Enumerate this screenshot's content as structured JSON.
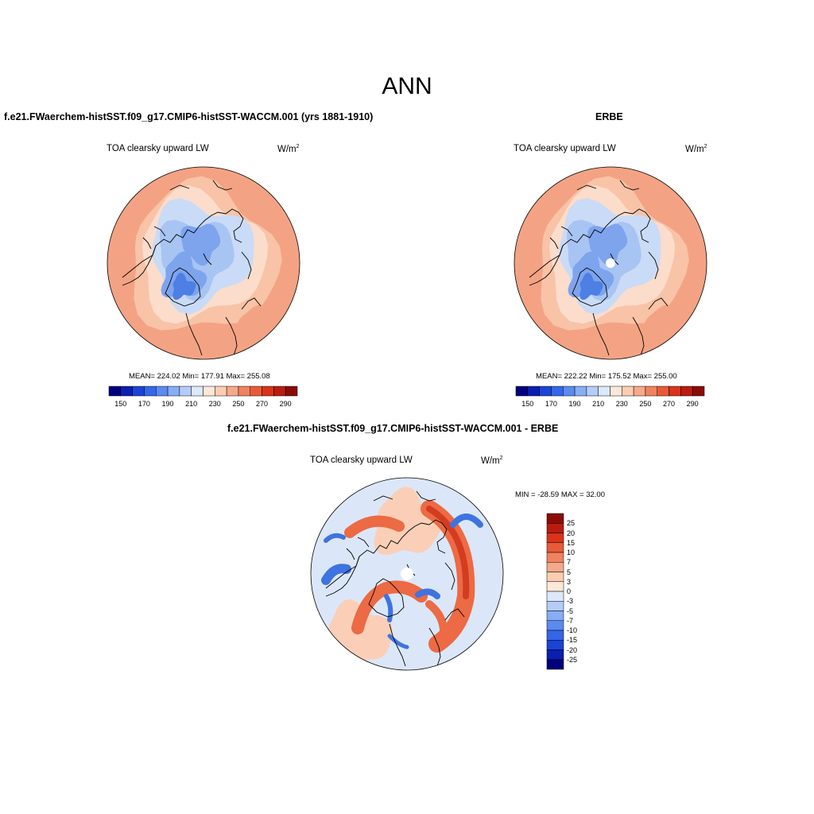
{
  "title": "ANN",
  "panels": [
    {
      "title": "f.e21.FWaerchem-histSST.f09_g17.CMIP6-histSST-WACCM.001 (yrs 1881-1910)",
      "variable": "TOA clearsky upward LW",
      "units_base": "W/m",
      "units_exp": "2",
      "stats": "MEAN= 224.02  Min= 177.91  Max= 255.08"
    },
    {
      "title": "ERBE",
      "variable": "TOA clearsky upward LW",
      "units_base": "W/m",
      "units_exp": "2",
      "stats": "MEAN= 222.22  Min= 175.52  Max= 255.00"
    },
    {
      "title": "f.e21.FWaerchem-histSST.f09_g17.CMIP6-histSST-WACCM.001 - ERBE",
      "variable": "TOA clearsky upward LW",
      "units_base": "W/m",
      "units_exp": "2",
      "stats": "MIN = -28.59 MAX =  32.00"
    }
  ],
  "colorbar_abs": {
    "colors": [
      "#00007f",
      "#0a1fb0",
      "#1a44d6",
      "#3566e8",
      "#5b8af0",
      "#87aef5",
      "#b4ccf7",
      "#dde8fb",
      "#fde8d8",
      "#fbcdb2",
      "#f6a98a",
      "#f0825f",
      "#e85a37",
      "#d9331a",
      "#b81c10",
      "#8b0c06"
    ],
    "labels": [
      "150",
      "170",
      "190",
      "210",
      "230",
      "250",
      "270",
      "290"
    ]
  },
  "colorbar_diff": {
    "colors": [
      "#8b0c06",
      "#b81c10",
      "#d9331a",
      "#e85a37",
      "#f0825f",
      "#f6a98a",
      "#fbcdb2",
      "#fde8d8",
      "#dde8fb",
      "#b4ccf7",
      "#87aef5",
      "#5b8af0",
      "#3566e8",
      "#1a44d6",
      "#0a1fb0",
      "#00007f"
    ],
    "labels": [
      "25",
      "20",
      "15",
      "10",
      "7",
      "5",
      "3",
      "0",
      "-3",
      "-5",
      "-7",
      "-10",
      "-15",
      "-20",
      "-25"
    ]
  },
  "fill_colors": {
    "warm_outer": "#f3a384",
    "warm_mid": "#f8c3a7",
    "warm_light": "#fcdccb",
    "cool_light": "#c9dbf6",
    "cool_mid": "#a8c4f2",
    "cool_deep": "#7ea4ee",
    "cool_deepest": "#4d7fe4",
    "diff_bg": "#dbe7f8",
    "diff_red": "#ec6a44",
    "diff_deepred": "#d43c20",
    "diff_blue": "#3f73e0",
    "diff_pink": "#fbcfb7"
  }
}
